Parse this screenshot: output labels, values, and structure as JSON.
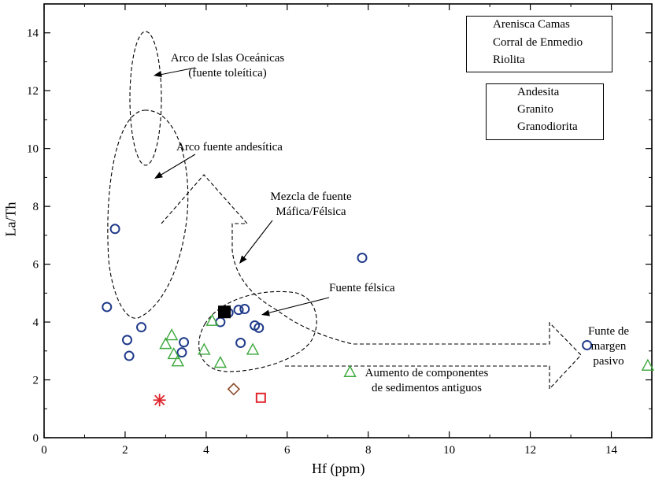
{
  "chart_data": {
    "type": "scatter",
    "xlabel": "Hf (ppm)",
    "ylabel": "La/Th",
    "xlim": [
      0,
      15
    ],
    "ylim": [
      0,
      15
    ],
    "xticks": [
      0,
      2,
      4,
      6,
      8,
      10,
      12,
      14
    ],
    "yticks": [
      0,
      2,
      4,
      6,
      8,
      10,
      12,
      14
    ],
    "grid": false,
    "series": [
      {
        "name": "Arenisca Camas",
        "marker": "circle",
        "color": "#1f3a8a",
        "points": [
          [
            1.55,
            4.52
          ],
          [
            1.75,
            7.22
          ],
          [
            2.05,
            3.38
          ],
          [
            2.1,
            2.83
          ],
          [
            2.4,
            3.82
          ],
          [
            3.4,
            2.95
          ],
          [
            3.45,
            3.3
          ],
          [
            4.35,
            4.0
          ],
          [
            4.55,
            4.32
          ],
          [
            4.8,
            4.42
          ],
          [
            4.95,
            4.45
          ],
          [
            4.85,
            3.28
          ],
          [
            5.2,
            3.88
          ],
          [
            5.3,
            3.8
          ],
          [
            7.85,
            6.22
          ],
          [
            13.4,
            3.2
          ]
        ]
      },
      {
        "name": "Corral de Enmedio",
        "marker": "triangle",
        "color": "#3aa83a",
        "points": [
          [
            3.0,
            3.25
          ],
          [
            3.15,
            3.55
          ],
          [
            3.2,
            2.9
          ],
          [
            3.3,
            2.65
          ],
          [
            3.95,
            3.05
          ],
          [
            4.15,
            4.05
          ],
          [
            4.35,
            2.6
          ],
          [
            5.15,
            3.05
          ],
          [
            7.55,
            2.28
          ],
          [
            14.9,
            2.5
          ]
        ]
      },
      {
        "name": "Riolita",
        "marker": "square-open",
        "color": "#e0252b",
        "points": [
          [
            5.35,
            1.38
          ]
        ]
      },
      {
        "name": "Andesita",
        "marker": "diamond",
        "color": "#8b4a2b",
        "points": [
          [
            4.68,
            1.68
          ]
        ]
      },
      {
        "name": "Granito",
        "marker": "asterisk",
        "color": "#e0252b",
        "points": [
          [
            2.85,
            1.3
          ]
        ]
      },
      {
        "name": "Granodiorita",
        "marker": "square-filled",
        "color": "#000000",
        "points": [
          [
            4.45,
            4.35
          ]
        ]
      }
    ],
    "legend": {
      "group1": [
        "Arenisca Camas",
        "Corral de Enmedio",
        "Riolita"
      ],
      "group2": [
        "Andesita",
        "Granito",
        "Granodiorita"
      ],
      "placement": "top-right"
    },
    "annotations": {
      "arco_islas_line1": "Arco de Islas Oceánicas",
      "arco_islas_line2": "(fuente toleítica)",
      "arco_andesitica": "Arco fuente andesítica",
      "mezcla_line1": "Mezcla de fuente",
      "mezcla_line2": "Máfica/Félsica",
      "felsica": "Fuente félsica",
      "margen_line1": "Funte de",
      "margen_line2": "margen",
      "margen_line3": "pasivo",
      "aumento_line1": "Aumento de componentes",
      "aumento_line2": "de sedimentos antiguos"
    }
  }
}
